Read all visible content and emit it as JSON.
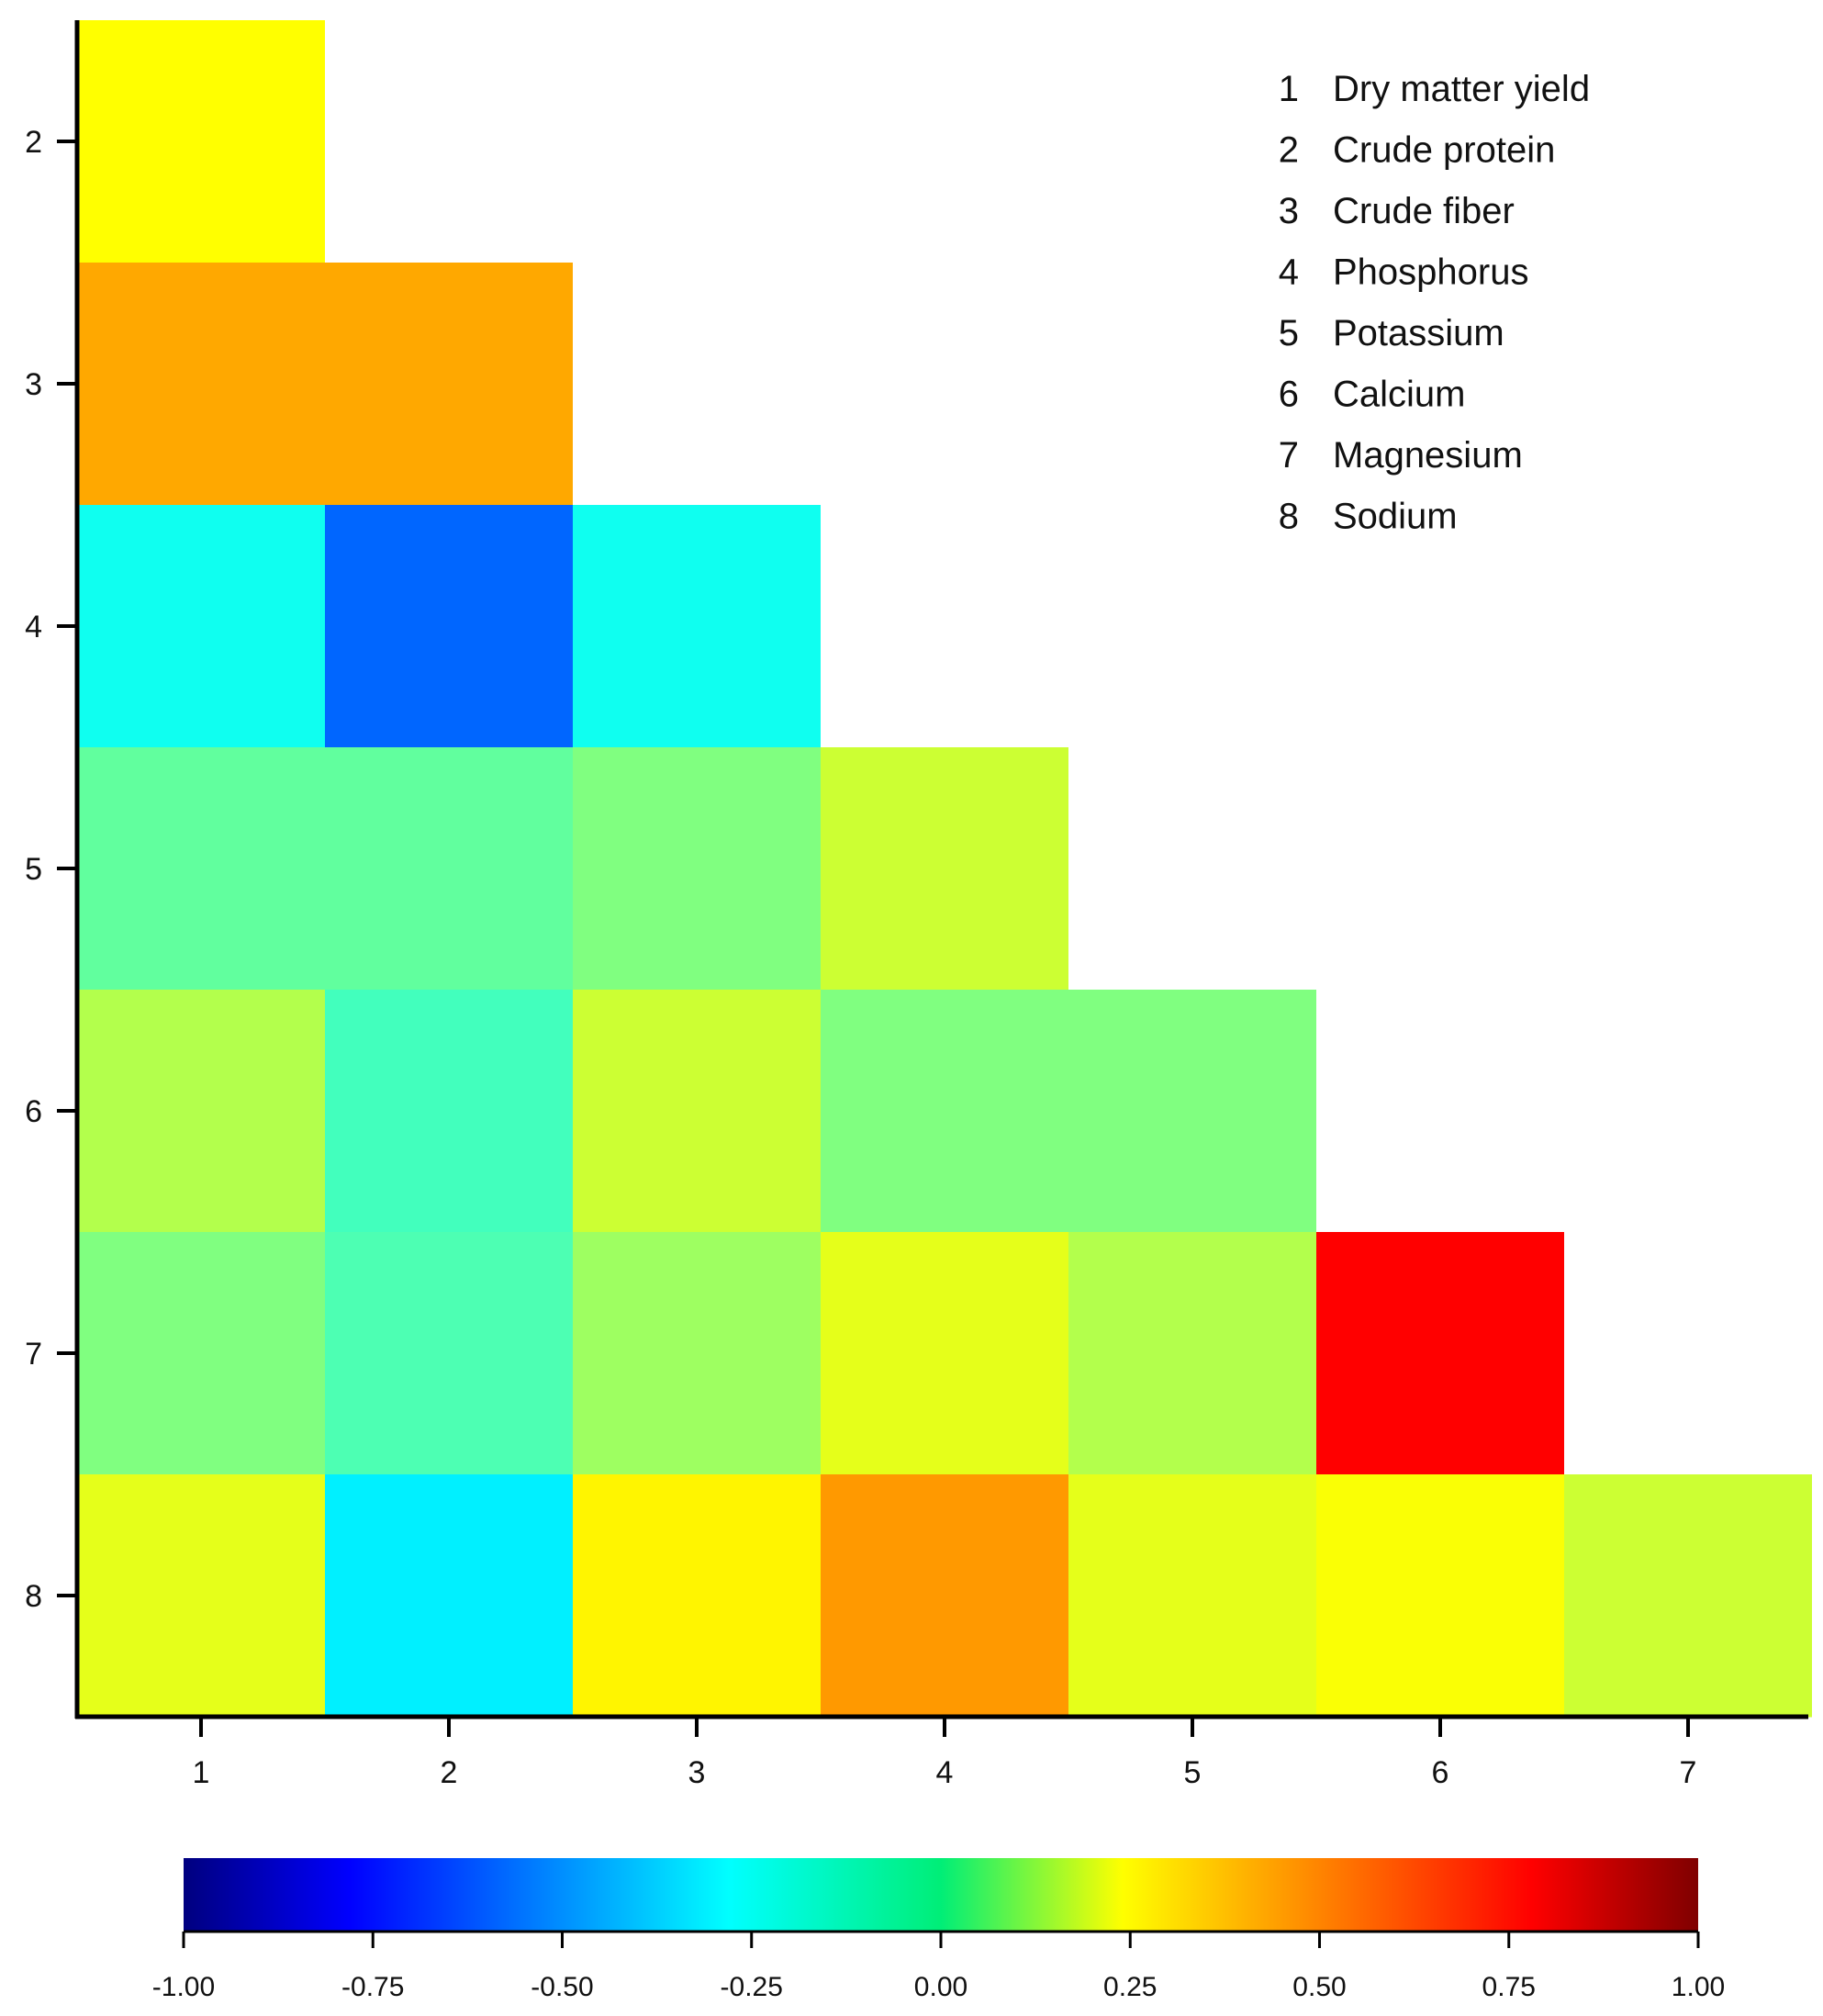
{
  "chart_data": {
    "type": "heatmap",
    "layout": "lower-triangle",
    "x_ticks": [
      "1",
      "2",
      "3",
      "4",
      "5",
      "6",
      "7"
    ],
    "y_ticks": [
      "2",
      "3",
      "4",
      "5",
      "6",
      "7",
      "8"
    ],
    "cells": [
      {
        "row": 2,
        "col": 1,
        "value": 0.25
      },
      {
        "row": 3,
        "col": 1,
        "value": 0.42
      },
      {
        "row": 3,
        "col": 2,
        "value": 0.42
      },
      {
        "row": 4,
        "col": 1,
        "value": -0.22
      },
      {
        "row": 4,
        "col": 2,
        "value": -0.55
      },
      {
        "row": 4,
        "col": 3,
        "value": -0.22
      },
      {
        "row": 5,
        "col": 1,
        "value": -0.06
      },
      {
        "row": 5,
        "col": 2,
        "value": -0.06
      },
      {
        "row": 5,
        "col": 3,
        "value": 0.0
      },
      {
        "row": 5,
        "col": 4,
        "value": 0.15
      },
      {
        "row": 6,
        "col": 1,
        "value": 0.1
      },
      {
        "row": 6,
        "col": 2,
        "value": -0.12
      },
      {
        "row": 6,
        "col": 3,
        "value": 0.15
      },
      {
        "row": 6,
        "col": 4,
        "value": 0.0
      },
      {
        "row": 6,
        "col": 5,
        "value": 0.0
      },
      {
        "row": 7,
        "col": 1,
        "value": 0.0
      },
      {
        "row": 7,
        "col": 2,
        "value": -0.1
      },
      {
        "row": 7,
        "col": 3,
        "value": 0.06
      },
      {
        "row": 7,
        "col": 4,
        "value": 0.2
      },
      {
        "row": 7,
        "col": 5,
        "value": 0.1
      },
      {
        "row": 7,
        "col": 6,
        "value": 0.75
      },
      {
        "row": 8,
        "col": 1,
        "value": 0.2
      },
      {
        "row": 8,
        "col": 2,
        "value": -0.28
      },
      {
        "row": 8,
        "col": 3,
        "value": 0.27
      },
      {
        "row": 8,
        "col": 4,
        "value": 0.45
      },
      {
        "row": 8,
        "col": 5,
        "value": 0.2
      },
      {
        "row": 8,
        "col": 6,
        "value": 0.24
      },
      {
        "row": 8,
        "col": 7,
        "value": 0.15
      }
    ],
    "legend": [
      {
        "num": "1",
        "label": "Dry matter yield"
      },
      {
        "num": "2",
        "label": "Crude protein"
      },
      {
        "num": "3",
        "label": "Crude fiber"
      },
      {
        "num": "4",
        "label": "Phosphorus"
      },
      {
        "num": "5",
        "label": "Potassium"
      },
      {
        "num": "6",
        "label": "Calcium"
      },
      {
        "num": "7",
        "label": "Magnesium"
      },
      {
        "num": "8",
        "label": "Sodium"
      }
    ],
    "legend_position": "top-right",
    "colorbar": {
      "range": [
        -1.0,
        1.0
      ],
      "ticks": [
        "-1.00",
        "-0.75",
        "-0.50",
        "-0.25",
        "0.00",
        "0.25",
        "0.50",
        "0.75",
        "1.00"
      ],
      "position": "bottom",
      "colormap": "jet"
    },
    "grid": false
  }
}
